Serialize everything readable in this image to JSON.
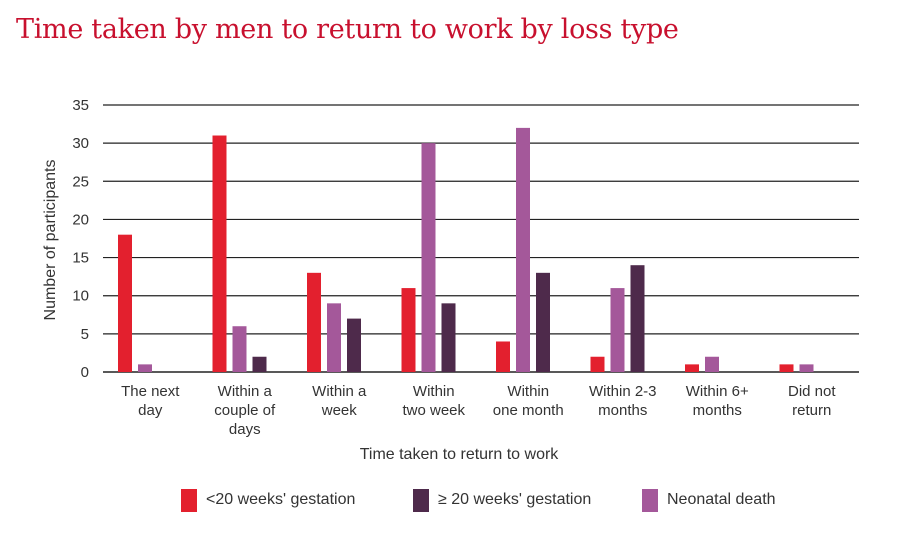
{
  "title": "Time taken by men to return to work by loss type",
  "colors": {
    "title": "#c8102e",
    "text": "#333333",
    "grid": "#222222"
  },
  "chart_data": {
    "type": "bar",
    "title": "Time taken by men to return to work by loss type",
    "xlabel": "Time taken to return to work",
    "ylabel": "Number of participants",
    "ylim": [
      0,
      35
    ],
    "yticks": [
      0,
      5,
      10,
      15,
      20,
      25,
      30,
      35
    ],
    "grid": true,
    "legend_position": "bottom",
    "categories": [
      [
        "The next",
        "day"
      ],
      [
        "Within a",
        "couple of",
        "days"
      ],
      [
        "Within a",
        "week"
      ],
      [
        "Within",
        "two week"
      ],
      [
        "Within",
        "one month"
      ],
      [
        "Within 2-3",
        "months"
      ],
      [
        "Within 6+",
        "months"
      ],
      [
        "Did not",
        "return"
      ]
    ],
    "series": [
      {
        "name": "<20 weeks' gestation",
        "color": "#e3202e",
        "values": [
          18,
          31,
          13,
          11,
          4,
          2,
          1,
          1
        ]
      },
      {
        "name": "Neonatal death",
        "color": "#a4589a",
        "values": [
          1,
          6,
          9,
          30,
          32,
          11,
          2,
          1
        ]
      },
      {
        "name": "≥ 20 weeks' gestation",
        "color": "#4e2a4b",
        "values": [
          0,
          2,
          7,
          9,
          13,
          14,
          0,
          0
        ]
      }
    ],
    "legend_order": [
      0,
      2,
      1
    ]
  }
}
